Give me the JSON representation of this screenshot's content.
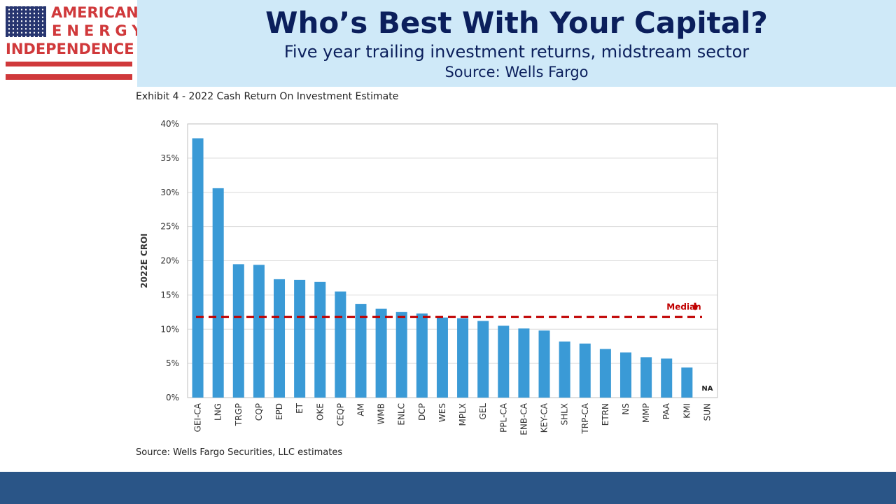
{
  "logo": {
    "line1": "AMERICAN",
    "line2": "ENERGY",
    "line3": "INDEPENDENCE",
    "flag_color": "#27356f",
    "accent_color": "#d0393b"
  },
  "header": {
    "title": "Who’s Best With Your Capital?",
    "subtitle": "Five year trailing investment returns, midstream sector",
    "source": "Source: Wells Fargo"
  },
  "exhibit_title": "Exhibit 4 - 2022 Cash Return On Investment Estimate",
  "footnote": "Source: Wells Fargo Securities, LLC estimates",
  "chart_data": {
    "type": "bar",
    "categories": [
      "GEI-CA",
      "LNG",
      "TRGP",
      "CQP",
      "EPD",
      "ET",
      "OKE",
      "CEQP",
      "AM",
      "WMB",
      "ENLC",
      "DCP",
      "WES",
      "MPLX",
      "GEL",
      "PPL-CA",
      "ENB-CA",
      "KEY-CA",
      "SHLX",
      "TRP-CA",
      "ETRN",
      "NS",
      "MMP",
      "PAA",
      "KMI",
      "SUN"
    ],
    "values": [
      37.9,
      30.6,
      19.5,
      19.4,
      17.3,
      17.2,
      16.9,
      15.5,
      13.7,
      13.0,
      12.5,
      12.3,
      11.7,
      11.6,
      11.2,
      10.5,
      10.1,
      9.8,
      8.2,
      7.9,
      7.1,
      6.6,
      5.9,
      5.7,
      4.4,
      null
    ],
    "missing_label": "NA",
    "ylabel": "2022E CROI",
    "ylim": [
      0,
      40
    ],
    "yticks": [
      0,
      5,
      10,
      15,
      20,
      25,
      30,
      35,
      40
    ],
    "ytick_labels": [
      "0%",
      "5%",
      "10%",
      "15%",
      "20%",
      "25%",
      "30%",
      "35%",
      "40%"
    ],
    "median": 11.8,
    "median_label": "Median",
    "grid": true,
    "bar_color": "#3a9ad6",
    "median_color": "#c00000"
  }
}
